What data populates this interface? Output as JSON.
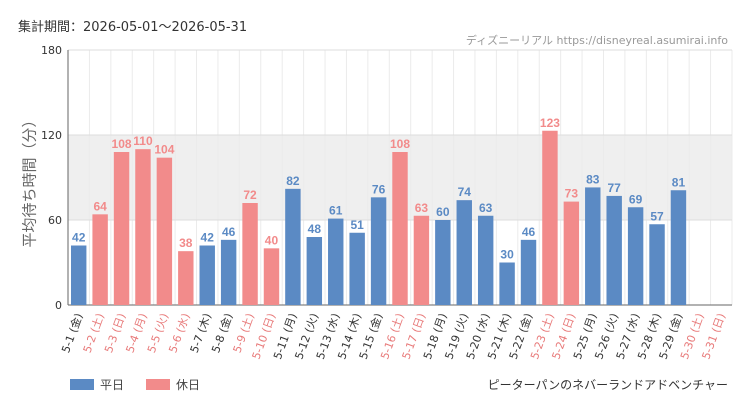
{
  "period_text": "集計期間：2026-05-01〜2026-05-31",
  "credit_text": "ディズニーリアル https://disneyreal.asumirai.info",
  "attraction_name": "ピーターパンのネバーランドアドベンチャー",
  "colors": {
    "weekday": "#5b8ac4",
    "holiday": "#f28b8b",
    "band": "#efefef",
    "grid": "#dddddd"
  },
  "chart_data": {
    "type": "bar",
    "ylabel": "平均待ち時間（分）",
    "ylim": [
      0,
      180
    ],
    "yticks": [
      0,
      60,
      120,
      180
    ],
    "band": [
      60,
      120
    ],
    "grid": true,
    "legend_position": "bottom-left",
    "categories": [
      "5-1 (金)",
      "5-2 (土)",
      "5-3 (日)",
      "5-4 (月)",
      "5-5 (火)",
      "5-6 (水)",
      "5-7 (木)",
      "5-8 (金)",
      "5-9 (土)",
      "5-10 (日)",
      "5-11 (月)",
      "5-12 (火)",
      "5-13 (水)",
      "5-14 (木)",
      "5-15 (金)",
      "5-16 (土)",
      "5-17 (日)",
      "5-18 (月)",
      "5-19 (火)",
      "5-20 (水)",
      "5-21 (木)",
      "5-22 (金)",
      "5-23 (土)",
      "5-24 (日)",
      "5-25 (月)",
      "5-26 (火)",
      "5-27 (水)",
      "5-28 (木)",
      "5-29 (金)",
      "5-30 (土)",
      "5-31 (日)"
    ],
    "category_holiday": [
      false,
      true,
      true,
      true,
      true,
      true,
      false,
      false,
      true,
      true,
      false,
      false,
      false,
      false,
      false,
      true,
      true,
      false,
      false,
      false,
      false,
      false,
      true,
      true,
      false,
      false,
      false,
      false,
      false,
      true,
      true
    ],
    "values": [
      42,
      64,
      108,
      110,
      104,
      38,
      42,
      46,
      72,
      40,
      82,
      48,
      61,
      51,
      76,
      108,
      63,
      60,
      74,
      63,
      30,
      46,
      123,
      73,
      83,
      77,
      69,
      57,
      81,
      null,
      null
    ],
    "series": [
      {
        "name": "平日",
        "color_key": "weekday"
      },
      {
        "name": "休日",
        "color_key": "holiday"
      }
    ]
  }
}
